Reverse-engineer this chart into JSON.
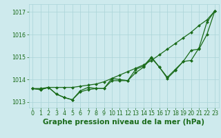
{
  "title": "Graphe pression niveau de la mer (hPa)",
  "x": [
    0,
    1,
    2,
    3,
    4,
    5,
    6,
    7,
    8,
    9,
    10,
    11,
    12,
    13,
    14,
    15,
    16,
    17,
    18,
    19,
    20,
    21,
    22,
    23
  ],
  "line_upper_smooth": [
    1013.6,
    1013.6,
    1013.65,
    1013.65,
    1013.65,
    1013.65,
    1013.7,
    1013.75,
    1013.8,
    1013.9,
    1014.05,
    1014.2,
    1014.35,
    1014.5,
    1014.65,
    1014.85,
    1015.1,
    1015.35,
    1015.6,
    1015.85,
    1016.1,
    1016.4,
    1016.65,
    1017.05
  ],
  "line_lower_smooth": [
    1013.6,
    1013.55,
    1013.65,
    1013.35,
    1013.2,
    1013.1,
    1013.45,
    1013.55,
    1013.6,
    1013.6,
    1013.95,
    1013.95,
    1013.95,
    1014.3,
    1014.55,
    1014.95,
    1014.55,
    1014.05,
    1014.4,
    1014.8,
    1015.3,
    1015.35,
    1016.0,
    1017.05
  ],
  "line_zigzag": [
    1013.6,
    1013.55,
    1013.65,
    1013.35,
    1013.2,
    1013.1,
    1013.5,
    1013.65,
    1013.6,
    1013.6,
    1014.05,
    1014.0,
    1013.95,
    1014.45,
    1014.6,
    1015.0,
    1014.55,
    1014.1,
    1014.45,
    1014.8,
    1014.85,
    1015.4,
    1016.55,
    1017.05
  ],
  "ylim": [
    1012.75,
    1017.35
  ],
  "yticks": [
    1013,
    1014,
    1015,
    1016,
    1017
  ],
  "xticks": [
    0,
    1,
    2,
    3,
    4,
    5,
    6,
    7,
    8,
    9,
    10,
    11,
    12,
    13,
    14,
    15,
    16,
    17,
    18,
    19,
    20,
    21,
    22,
    23
  ],
  "bg_color": "#ceeaed",
  "grid_color": "#aad4d8",
  "line_color": "#1a6b1a",
  "title_color": "#1a6b1a",
  "title_fontsize": 7.5,
  "tick_fontsize": 5.8,
  "marker": "D",
  "marker_size": 2.0,
  "line_width": 0.9
}
